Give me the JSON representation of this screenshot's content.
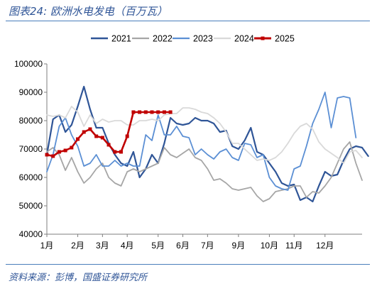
{
  "figure": {
    "title": "图表24:  欧洲水电发电（百万瓦）",
    "source": "资料来源：彭博，国盛证券研究所"
  },
  "chart_data": {
    "type": "line",
    "title": "",
    "xlabel": "",
    "ylabel": "",
    "ylim": [
      40000,
      100000
    ],
    "yticks": [
      40000,
      50000,
      60000,
      70000,
      80000,
      90000,
      100000
    ],
    "xlim": [
      1,
      52
    ],
    "xticks": [
      {
        "x": 1,
        "label": "1月"
      },
      {
        "x": 6,
        "label": "2月"
      },
      {
        "x": 10,
        "label": "3月"
      },
      {
        "x": 14,
        "label": "4月"
      },
      {
        "x": 19,
        "label": "5月"
      },
      {
        "x": 23,
        "label": "6月"
      },
      {
        "x": 27,
        "label": "7月"
      },
      {
        "x": 32,
        "label": "9月"
      },
      {
        "x": 37,
        "label": "10月"
      },
      {
        "x": 41,
        "label": "11月"
      },
      {
        "x": 46,
        "label": "12月"
      }
    ],
    "grid": false,
    "legend": "top",
    "series": [
      {
        "name": "2021",
        "color": "#2f5597",
        "width": 2.2,
        "values": [
          68000,
          80500,
          82000,
          76000,
          78500,
          85000,
          92000,
          84000,
          77500,
          77500,
          72000,
          68000,
          65000,
          64000,
          69000,
          60000,
          63000,
          68000,
          65000,
          72000,
          81000,
          79000,
          78500,
          79000,
          81000,
          80000,
          80000,
          79000,
          76000,
          76500,
          71000,
          70000,
          73000,
          77500,
          69000,
          68000,
          65000,
          62000,
          58000,
          57000,
          57500,
          52000,
          53000,
          51500,
          57000,
          62000,
          60500,
          61000,
          66000,
          70000,
          71000,
          70500,
          67500
        ]
      },
      {
        "name": "2022",
        "color": "#a6a6a6",
        "width": 1.8,
        "values": [
          69000,
          70500,
          68000,
          62500,
          67000,
          62000,
          58000,
          60000,
          63000,
          65000,
          60000,
          58000,
          57000,
          62000,
          63000,
          62000,
          63000,
          64000,
          65000,
          70500,
          68000,
          67000,
          68500,
          70000,
          67000,
          66000,
          63000,
          59000,
          59500,
          58000,
          56000,
          55500,
          56000,
          56500,
          53500,
          51500,
          52500,
          55000,
          55500,
          56000,
          57000,
          57000,
          53000,
          55000,
          54500,
          57000,
          60000,
          65000,
          70000,
          72500,
          65000,
          59000
        ]
      },
      {
        "name": "2023",
        "color": "#5b8fd4",
        "width": 1.8,
        "values": [
          62000,
          68000,
          78000,
          81000,
          75000,
          71000,
          64000,
          65000,
          68000,
          64000,
          64000,
          66000,
          64000,
          65000,
          64000,
          64000,
          75000,
          73000,
          82000,
          75000,
          75000,
          78000,
          74500,
          74000,
          68000,
          70000,
          68000,
          66500,
          69000,
          70000,
          67000,
          66000,
          72000,
          71500,
          67000,
          68000,
          60000,
          57000,
          56000,
          55500,
          63000,
          64000,
          71000,
          79000,
          84000,
          90000,
          77500,
          88000,
          88500,
          88000,
          74000
        ]
      },
      {
        "name": "2024",
        "color": "#d9d9d9",
        "width": 1.8,
        "values": [
          82000,
          81500,
          82000,
          81000,
          85000,
          83000,
          78000,
          82000,
          79000,
          80500,
          79500,
          80000,
          80000,
          78500,
          78500,
          80000,
          80000,
          80500,
          80000,
          82000,
          82500,
          82500,
          84500,
          84500,
          84000,
          83000,
          82500,
          81000,
          79000,
          76000,
          72000,
          72000,
          70000,
          68000,
          66000,
          66500,
          66000,
          67000,
          69000,
          72000,
          75500,
          78000,
          79000,
          77000,
          72500,
          70000,
          68500,
          67000,
          65000,
          69000,
          69500,
          67000
        ]
      },
      {
        "name": "2025",
        "color": "#c00000",
        "width": 2.6,
        "markers": true,
        "values": [
          68000,
          67500,
          69000,
          69500,
          70500,
          73500,
          76000,
          77000,
          74500,
          74000,
          71500,
          69000,
          69000,
          74500,
          83000,
          83000,
          83000,
          83000,
          83000,
          83000,
          83000
        ]
      }
    ]
  }
}
